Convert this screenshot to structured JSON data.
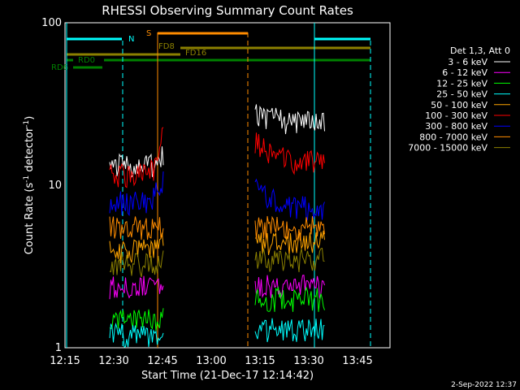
{
  "chart_data": {
    "type": "line",
    "title": "RHESSI Observing Summary Count Rates",
    "xlabel": "Start Time (21-Dec-17 12:14:42)",
    "ylabel_main": "Count Rate (s",
    "ylabel_sup1": "-1",
    "ylabel_mid": " detector",
    "ylabel_sup2": "-1",
    "ylabel_end": ")",
    "yscale": "log",
    "ylim": [
      1,
      100
    ],
    "x_ticks": [
      "12:15",
      "12:30",
      "12:45",
      "13:00",
      "13:15",
      "13:30",
      "13:45"
    ],
    "y_ticks": [
      "1",
      "10",
      "100"
    ],
    "legend_header": "Det 1,3, Att 0",
    "footer": "2-Sep-2022 12:37",
    "series": [
      {
        "name": "3 - 6 keV",
        "color": "#000000",
        "segments": [
          [
            12.5,
            13.5,
            13.0,
            13.5,
            13.0,
            13.8,
            15.0
          ],
          [
            28.0,
            26.0,
            25.0,
            24.0,
            24.5,
            25.0
          ]
        ]
      },
      {
        "name": "6 - 12 keV",
        "color": "#ff00ff",
        "segments": [
          [
            2.4,
            2.4,
            2.4,
            2.4,
            2.4,
            2.4,
            2.4
          ],
          [
            2.4,
            2.4,
            2.4,
            2.4,
            2.4,
            2.4
          ]
        ]
      },
      {
        "name": "12 - 25 keV",
        "color": "#00ff00",
        "segments": [
          [
            1.5,
            1.5,
            1.5,
            1.5,
            1.5,
            1.5,
            1.5
          ],
          [
            2.0,
            2.0,
            2.0,
            2.0,
            2.0,
            2.0
          ]
        ]
      },
      {
        "name": "25 - 50 keV",
        "color": "#00ffff",
        "segments": [
          [
            1.2,
            1.2,
            1.2,
            1.2,
            1.2,
            1.2,
            1.2
          ],
          [
            1.3,
            1.3,
            1.3,
            1.3,
            1.3,
            1.3
          ]
        ]
      },
      {
        "name": "50 - 100 keV",
        "color": "#ffa500",
        "segments": [
          [
            4.0,
            4.0,
            4.0,
            4.0,
            4.0,
            4.0,
            4.5
          ],
          [
            4.5,
            4.5,
            4.5,
            4.5,
            4.5,
            4.5
          ]
        ]
      },
      {
        "name": "100 - 300 keV",
        "color": "#ff0000",
        "segments": [
          [
            12.0,
            11.5,
            11.5,
            11.8,
            12.0,
            13.0,
            22.0
          ],
          [
            19.0,
            16.0,
            15.0,
            14.0,
            14.0,
            13.5
          ]
        ]
      },
      {
        "name": "300 - 800 keV",
        "color": "#0000ff",
        "segments": [
          [
            8.0,
            7.8,
            7.8,
            7.8,
            7.8,
            8.5,
            11.0
          ],
          [
            9.5,
            8.5,
            7.8,
            7.5,
            7.2,
            7.0
          ]
        ]
      },
      {
        "name": "800 - 7000 keV",
        "color": "#ff8c00",
        "segments": [
          [
            5.5,
            5.5,
            5.5,
            5.5,
            5.5,
            5.5,
            5.8
          ],
          [
            5.5,
            5.5,
            5.5,
            5.5,
            5.5,
            5.5
          ]
        ]
      },
      {
        "name": "7000 - 15000 keV",
        "color": "#8b8000",
        "segments": [
          [
            3.3,
            3.3,
            3.3,
            3.3,
            3.3,
            3.3,
            3.5
          ],
          [
            3.5,
            3.5,
            3.5,
            3.5,
            3.5,
            3.5
          ]
        ]
      }
    ],
    "flag_labels": {
      "N": "N",
      "S": "S",
      "FD8": "FD8",
      "FD16": "FD16",
      "RD0": "RD0",
      "RD6": "RD6"
    }
  }
}
